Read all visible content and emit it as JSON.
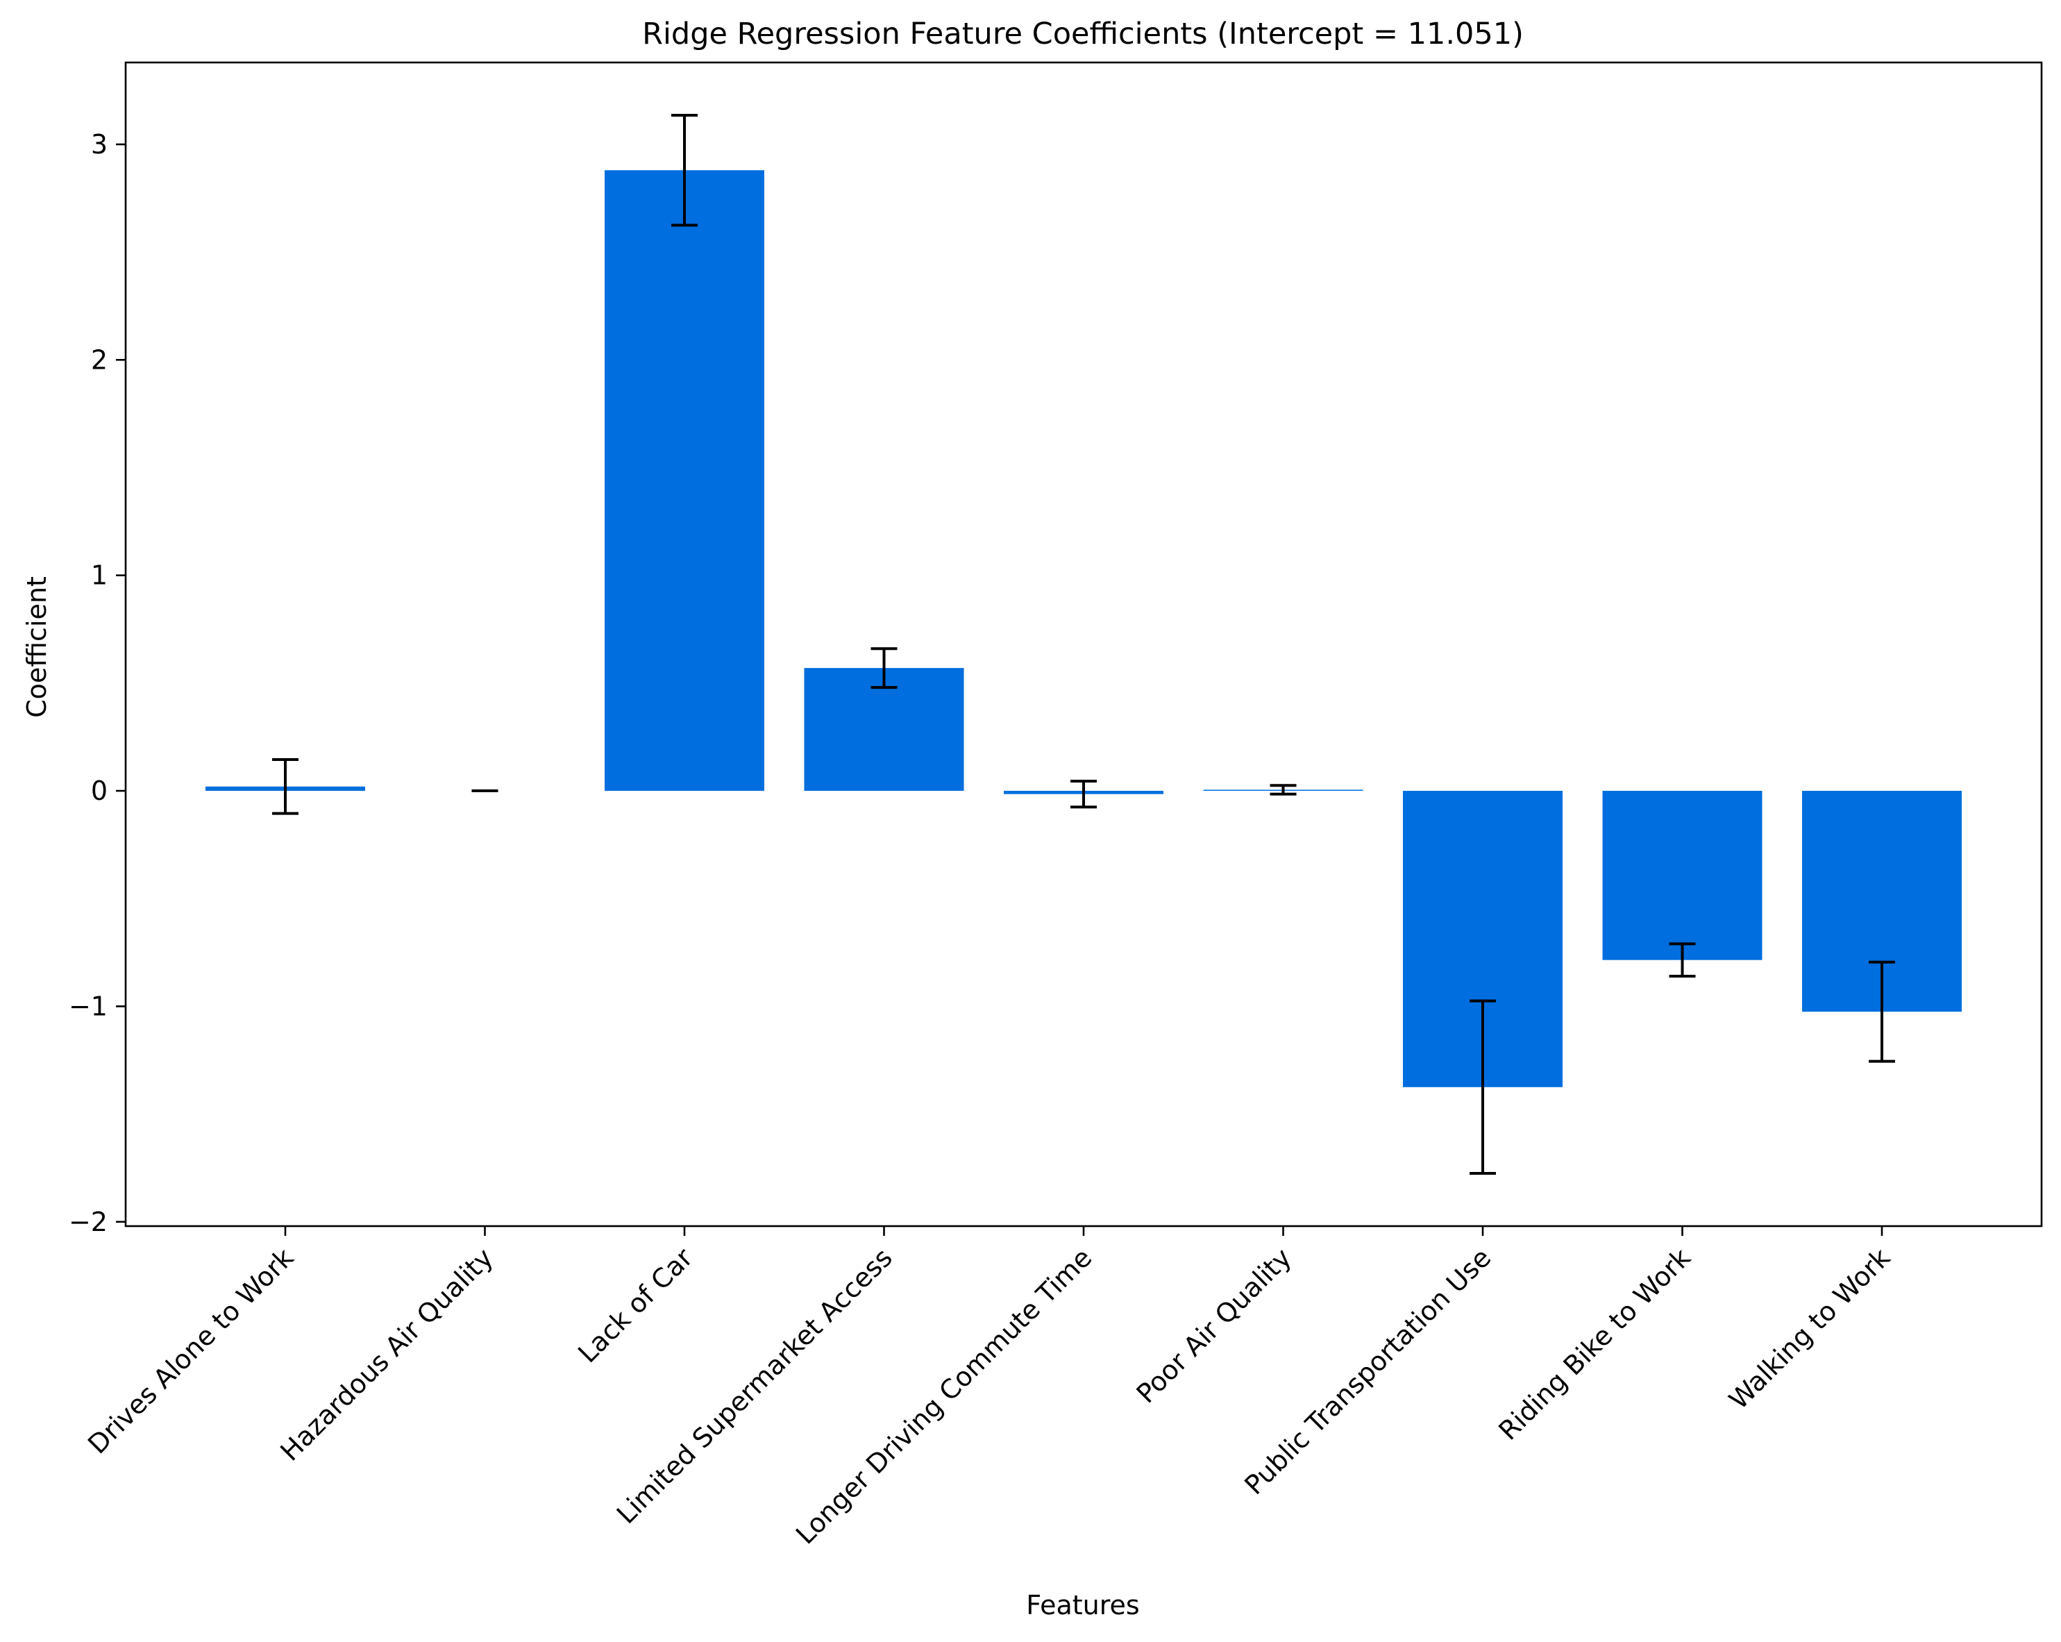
{
  "chart_data": {
    "type": "bar",
    "title": "Ridge Regression Feature Coefficients (Intercept = 11.051)",
    "xlabel": "Features",
    "ylabel": "Coefficient",
    "ylim": [
      -2.02,
      3.38
    ],
    "yticks": [
      -2,
      -1,
      0,
      1,
      2,
      3
    ],
    "ytick_labels": [
      "−2",
      "−1",
      "0",
      "1",
      "2",
      "3"
    ],
    "grid": false,
    "bar_color": "#006ede",
    "error_color": "#000000",
    "categories": [
      "Drives Alone to Work",
      "Hazardous Air Quality",
      "Lack of Car",
      "Limited Supermarket Access",
      "Longer Driving Commute Time",
      "Poor Air Quality",
      "Public Transportation Use",
      "Riding Bike to Work",
      "Walking to Work"
    ],
    "values": [
      0.02,
      0.0,
      2.88,
      0.57,
      -0.015,
      0.005,
      -1.375,
      -0.785,
      -1.025
    ],
    "errors": [
      0.125,
      0.0,
      0.255,
      0.09,
      0.06,
      0.02,
      0.4,
      0.075,
      0.23
    ]
  }
}
